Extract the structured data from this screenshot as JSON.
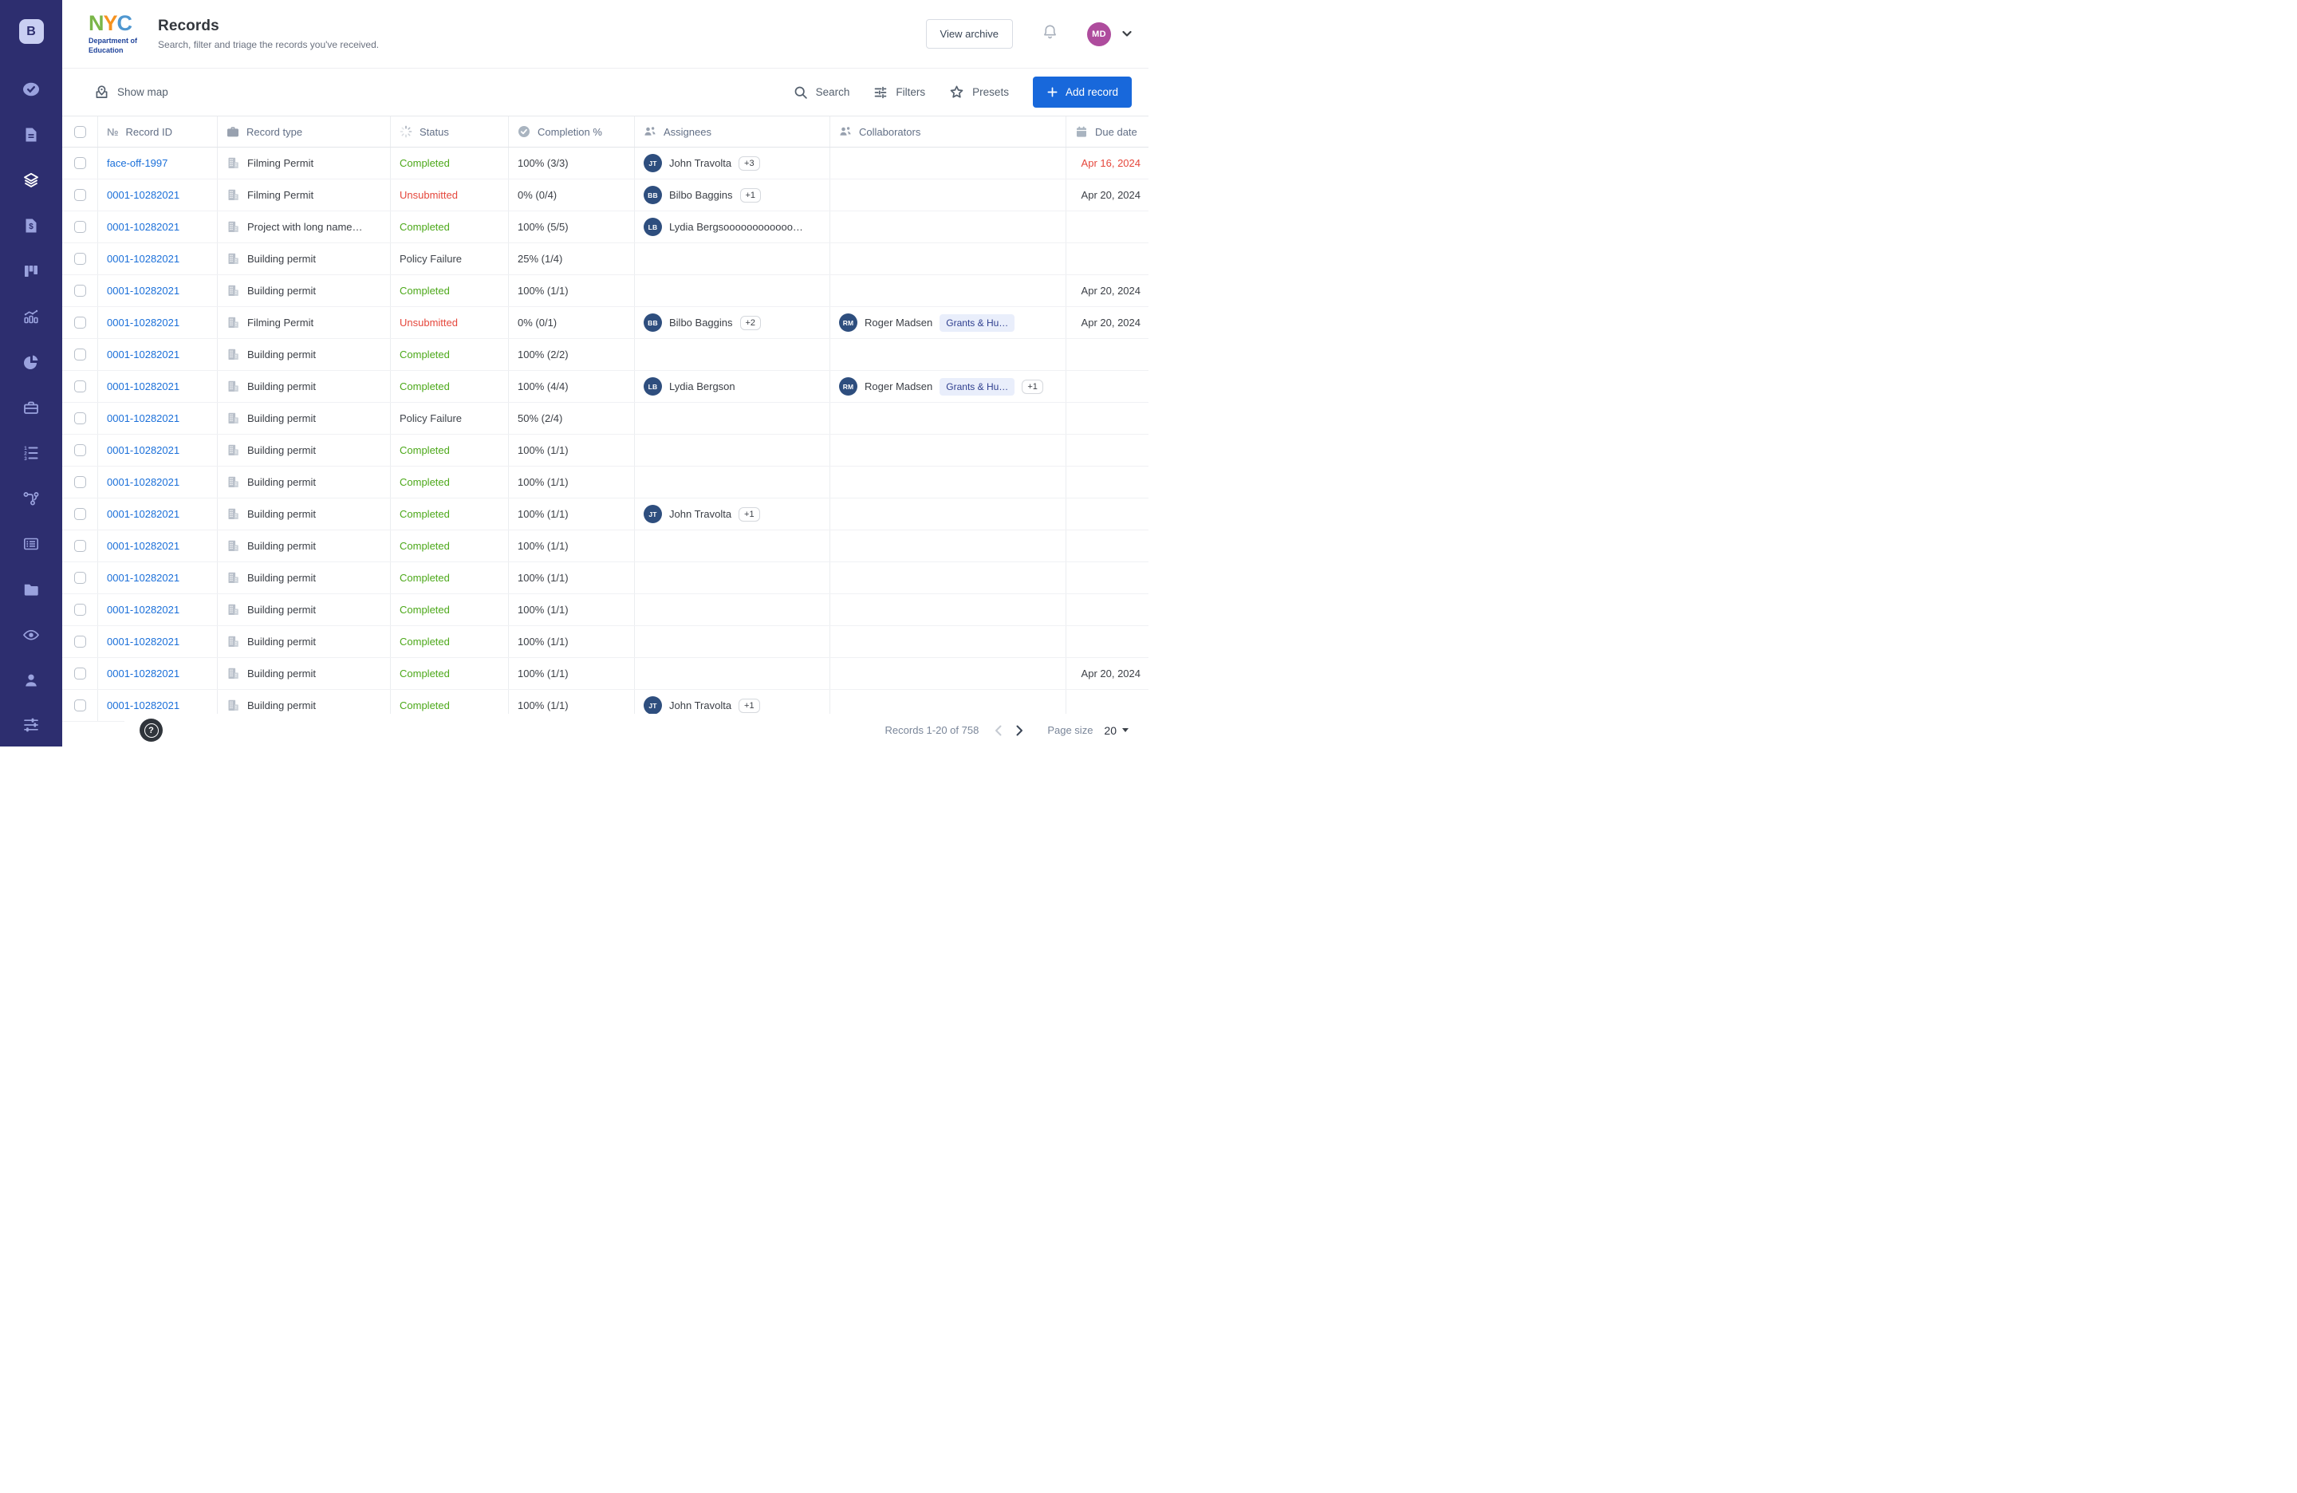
{
  "brand": {
    "nyc_n": "N",
    "nyc_y": "Y",
    "nyc_c": "C",
    "dept_line1": "Department of",
    "dept_line2": "Education"
  },
  "sidebar": {
    "badge": "B",
    "active_index": 2,
    "items": [
      {
        "icon": "tasks-check-icon"
      },
      {
        "icon": "document-icon"
      },
      {
        "icon": "layers-records-icon"
      },
      {
        "icon": "invoice-icon"
      },
      {
        "icon": "kanban-board-icon"
      },
      {
        "icon": "analytics-chart-icon"
      },
      {
        "icon": "pie-chart-icon"
      },
      {
        "icon": "briefcase-icon"
      },
      {
        "icon": "numbered-list-icon"
      },
      {
        "icon": "workflow-branch-icon"
      },
      {
        "icon": "card-list-icon"
      },
      {
        "icon": "folder-icon"
      },
      {
        "icon": "eye-icon"
      },
      {
        "icon": "person-icon"
      },
      {
        "icon": "sliders-settings-icon"
      }
    ]
  },
  "header": {
    "title": "Records",
    "subtitle": "Search, filter and triage the records you've received.",
    "view_archive_label": "View archive",
    "avatar_initials": "MD"
  },
  "toolbar": {
    "show_map_label": "Show map",
    "search_label": "Search",
    "filters_label": "Filters",
    "presets_label": "Presets",
    "add_record_label": "Add record"
  },
  "table": {
    "numero_glyph": "№",
    "columns": [
      {
        "key": "select",
        "label": ""
      },
      {
        "key": "id",
        "label": "Record ID",
        "icon": "numero-icon"
      },
      {
        "key": "type",
        "label": "Record type",
        "icon": "briefcase-icon"
      },
      {
        "key": "status",
        "label": "Status",
        "icon": "spinner-icon"
      },
      {
        "key": "completion",
        "label": "Completion %",
        "icon": "check-circle-icon"
      },
      {
        "key": "assignees",
        "label": "Assignees",
        "icon": "people-icon"
      },
      {
        "key": "collaborators",
        "label": "Collaborators",
        "icon": "people-icon"
      },
      {
        "key": "due",
        "label": "Due date",
        "icon": "calendar-icon"
      }
    ],
    "rows": [
      {
        "id": "face-off-1997",
        "type": "Filming Permit",
        "status": "Completed",
        "status_kind": "completed",
        "completion": "100% (3/3)",
        "assignee": {
          "initials": "JT",
          "name": "John Travolta",
          "more": "+3"
        },
        "collaborator": null,
        "due": {
          "text": "Apr 16, 2024",
          "overdue": true
        }
      },
      {
        "id": "0001-10282021",
        "type": "Filming Permit",
        "status": "Unsubmitted",
        "status_kind": "unsubmitted",
        "completion": "0% (0/4)",
        "assignee": {
          "initials": "BB",
          "name": "Bilbo Baggins",
          "more": "+1"
        },
        "collaborator": null,
        "due": {
          "text": "Apr 20, 2024",
          "overdue": false
        }
      },
      {
        "id": "0001-10282021",
        "type": "Project with long name…",
        "status": "Completed",
        "status_kind": "completed",
        "completion": "100% (5/5)",
        "assignee": {
          "initials": "LB",
          "name": "Lydia Bergsoooooooooooo…",
          "more": null
        },
        "collaborator": null,
        "due": null
      },
      {
        "id": "0001-10282021",
        "type": "Building permit",
        "status": "Policy Failure",
        "status_kind": "neutral",
        "completion": "25% (1/4)",
        "assignee": null,
        "collaborator": null,
        "due": null
      },
      {
        "id": "0001-10282021",
        "type": "Building permit",
        "status": "Completed",
        "status_kind": "completed",
        "completion": "100% (1/1)",
        "assignee": null,
        "collaborator": null,
        "due": {
          "text": "Apr 20, 2024",
          "overdue": false
        }
      },
      {
        "id": "0001-10282021",
        "type": "Filming Permit",
        "status": "Unsubmitted",
        "status_kind": "unsubmitted",
        "completion": "0% (0/1)",
        "assignee": {
          "initials": "BB",
          "name": "Bilbo Baggins",
          "more": "+2"
        },
        "collaborator": {
          "initials": "RM",
          "name": "Roger Madsen",
          "chip": "Grants & Hu…",
          "more": null
        },
        "due": {
          "text": "Apr 20, 2024",
          "overdue": false
        }
      },
      {
        "id": "0001-10282021",
        "type": "Building permit",
        "status": "Completed",
        "status_kind": "completed",
        "completion": "100% (2/2)",
        "assignee": null,
        "collaborator": null,
        "due": null
      },
      {
        "id": "0001-10282021",
        "type": "Building permit",
        "status": "Completed",
        "status_kind": "completed",
        "completion": "100% (4/4)",
        "assignee": {
          "initials": "LB",
          "name": "Lydia Bergson",
          "more": null
        },
        "collaborator": {
          "initials": "RM",
          "name": "Roger Madsen",
          "chip": "Grants & Hu…",
          "more": "+1"
        },
        "due": null
      },
      {
        "id": "0001-10282021",
        "type": "Building permit",
        "status": "Policy Failure",
        "status_kind": "neutral",
        "completion": "50% (2/4)",
        "assignee": null,
        "collaborator": null,
        "due": null
      },
      {
        "id": "0001-10282021",
        "type": "Building permit",
        "status": "Completed",
        "status_kind": "completed",
        "completion": "100% (1/1)",
        "assignee": null,
        "collaborator": null,
        "due": null
      },
      {
        "id": "0001-10282021",
        "type": "Building permit",
        "status": "Completed",
        "status_kind": "completed",
        "completion": "100% (1/1)",
        "assignee": null,
        "collaborator": null,
        "due": null
      },
      {
        "id": "0001-10282021",
        "type": "Building permit",
        "status": "Completed",
        "status_kind": "completed",
        "completion": "100% (1/1)",
        "assignee": {
          "initials": "JT",
          "name": "John Travolta",
          "more": "+1"
        },
        "collaborator": null,
        "due": null
      },
      {
        "id": "0001-10282021",
        "type": "Building permit",
        "status": "Completed",
        "status_kind": "completed",
        "completion": "100% (1/1)",
        "assignee": null,
        "collaborator": null,
        "due": null
      },
      {
        "id": "0001-10282021",
        "type": "Building permit",
        "status": "Completed",
        "status_kind": "completed",
        "completion": "100% (1/1)",
        "assignee": null,
        "collaborator": null,
        "due": null
      },
      {
        "id": "0001-10282021",
        "type": "Building permit",
        "status": "Completed",
        "status_kind": "completed",
        "completion": "100% (1/1)",
        "assignee": null,
        "collaborator": null,
        "due": null
      },
      {
        "id": "0001-10282021",
        "type": "Building permit",
        "status": "Completed",
        "status_kind": "completed",
        "completion": "100% (1/1)",
        "assignee": null,
        "collaborator": null,
        "due": null
      },
      {
        "id": "0001-10282021",
        "type": "Building permit",
        "status": "Completed",
        "status_kind": "completed",
        "completion": "100% (1/1)",
        "assignee": null,
        "collaborator": null,
        "due": {
          "text": "Apr 20, 2024",
          "overdue": false
        }
      },
      {
        "id": "0001-10282021",
        "type": "Building permit",
        "status": "Completed",
        "status_kind": "completed",
        "completion": "100% (1/1)",
        "assignee": {
          "initials": "JT",
          "name": "John Travolta",
          "more": "+1"
        },
        "collaborator": null,
        "due": null
      }
    ]
  },
  "footer": {
    "help_glyph": "?",
    "records_label": "Records 1-20 of 758",
    "page_size_label": "Page size",
    "page_size_value": "20"
  },
  "colors": {
    "sidebar_bg": "#2D2E6F",
    "accent": "#1868DB",
    "link": "#1A6FD9",
    "avatar_navy": "#2E4E7E",
    "avatar_purple": "#AE4C9D",
    "chip_bg": "#E9EEFB",
    "chip_text": "#2F3F8F",
    "red": "#E5473C",
    "green": "#4CA819",
    "neutral_status": "#40454C",
    "logo_green": "#7AB648",
    "logo_orange": "#F6921E",
    "logo_blue": "#4F97D0",
    "logo_navy": "#21459B"
  }
}
